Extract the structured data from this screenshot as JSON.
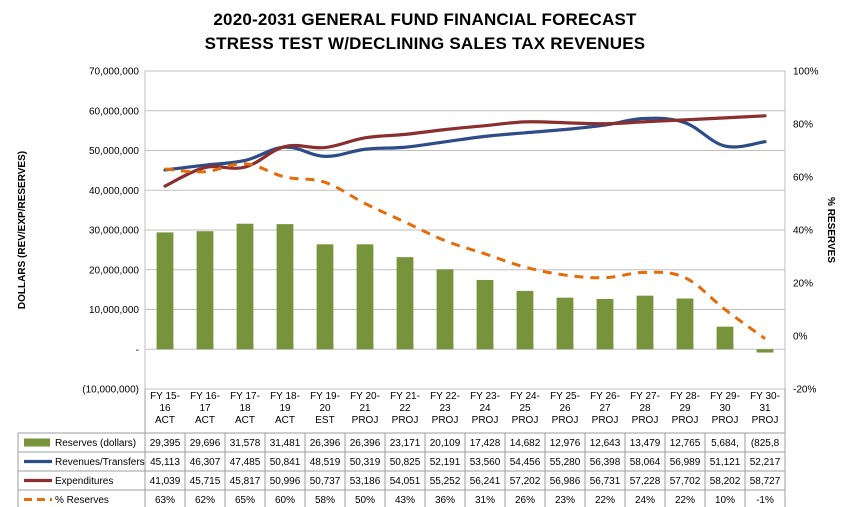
{
  "chart_data": {
    "type": "bar+line",
    "title": "2020-2031 GENERAL FUND FINANCIAL FORECAST",
    "subtitle": "STRESS TEST W/DECLINING SALES TAX REVENUES",
    "ylabel": "DOLLARS (REV/EXP/RESERVES)",
    "y2label": "% RESERVES",
    "ylim": [
      -10000000,
      70000000
    ],
    "y2lim": [
      -20,
      100
    ],
    "y_ticks": [
      "70,000,000",
      "60,000,000",
      "50,000,000",
      "40,000,000",
      "30,000,000",
      "20,000,000",
      "10,000,000",
      "-",
      "(10,000,000)"
    ],
    "y2_ticks": [
      "100%",
      "80%",
      "60%",
      "40%",
      "20%",
      "0%",
      "-20%"
    ],
    "categories": [
      [
        "FY 15-",
        "16",
        "ACT"
      ],
      [
        "FY 16-",
        "17",
        "ACT"
      ],
      [
        "FY 17-",
        "18",
        "ACT"
      ],
      [
        "FY 18-",
        "19",
        "ACT"
      ],
      [
        "FY 19-",
        "20",
        "EST"
      ],
      [
        "FY 20-",
        "21",
        "PROJ"
      ],
      [
        "FY 21-",
        "22",
        "PROJ"
      ],
      [
        "FY 22-",
        "23",
        "PROJ"
      ],
      [
        "FY 23-",
        "24",
        "PROJ"
      ],
      [
        "FY 24-",
        "25",
        "PROJ"
      ],
      [
        "FY 25-",
        "26",
        "PROJ"
      ],
      [
        "FY 26-",
        "27",
        "PROJ"
      ],
      [
        "FY 27-",
        "28",
        "PROJ"
      ],
      [
        "FY 28-",
        "29",
        "PROJ"
      ],
      [
        "FY 29-",
        "30",
        "PROJ"
      ],
      [
        "FY 30-",
        "31",
        "PROJ"
      ]
    ],
    "series": [
      {
        "name": "Reserves (dollars)",
        "type": "bar",
        "axis": "left",
        "color": "#77933C",
        "values": [
          29395000,
          29696000,
          31578000,
          31481000,
          26396000,
          26396000,
          23171000,
          20109000,
          17428000,
          14682000,
          12976000,
          12643000,
          13479000,
          12765000,
          5684000,
          -825800
        ],
        "labels": [
          "29,395",
          "29,696",
          "31,578",
          "31,481",
          "26,396",
          "26,396",
          "23,171",
          "20,109",
          "17,428",
          "14,682",
          "12,976",
          "12,643",
          "13,479",
          "12,765",
          "5,684,",
          "(825,8"
        ]
      },
      {
        "name": "Revenues/Transfers",
        "type": "line",
        "axis": "left",
        "color": "#2E4C87",
        "values": [
          45113000,
          46307000,
          47485000,
          50841000,
          48519000,
          50319000,
          50825000,
          52191000,
          53560000,
          54456000,
          55280000,
          56398000,
          58064000,
          56989000,
          51121000,
          52217000
        ],
        "labels": [
          "45,113",
          "46,307",
          "47,485",
          "50,841",
          "48,519",
          "50,319",
          "50,825",
          "52,191",
          "53,560",
          "54,456",
          "55,280",
          "56,398",
          "58,064",
          "56,989",
          "51,121",
          "52,217"
        ]
      },
      {
        "name": "Expenditures",
        "type": "line",
        "axis": "left",
        "color": "#8B2E2E",
        "values": [
          41039000,
          45715000,
          45817000,
          50996000,
          50737000,
          53186000,
          54051000,
          55252000,
          56241000,
          57202000,
          56986000,
          56731000,
          57228000,
          57702000,
          58202000,
          58727000
        ],
        "labels": [
          "41,039",
          "45,715",
          "45,817",
          "50,996",
          "50,737",
          "53,186",
          "54,051",
          "55,252",
          "56,241",
          "57,202",
          "56,986",
          "56,731",
          "57,228",
          "57,702",
          "58,202",
          "58,727"
        ]
      },
      {
        "name": "% Reserves",
        "type": "line-dashed",
        "axis": "right",
        "color": "#E46C0A",
        "values": [
          63,
          62,
          65,
          60,
          58,
          50,
          43,
          36,
          31,
          26,
          23,
          22,
          24,
          22,
          10,
          -1
        ],
        "labels": [
          "63%",
          "62%",
          "65%",
          "60%",
          "58%",
          "50%",
          "43%",
          "36%",
          "31%",
          "26%",
          "23%",
          "22%",
          "24%",
          "22%",
          "10%",
          "-1%"
        ]
      }
    ],
    "grid": true,
    "legend": "data-table"
  }
}
